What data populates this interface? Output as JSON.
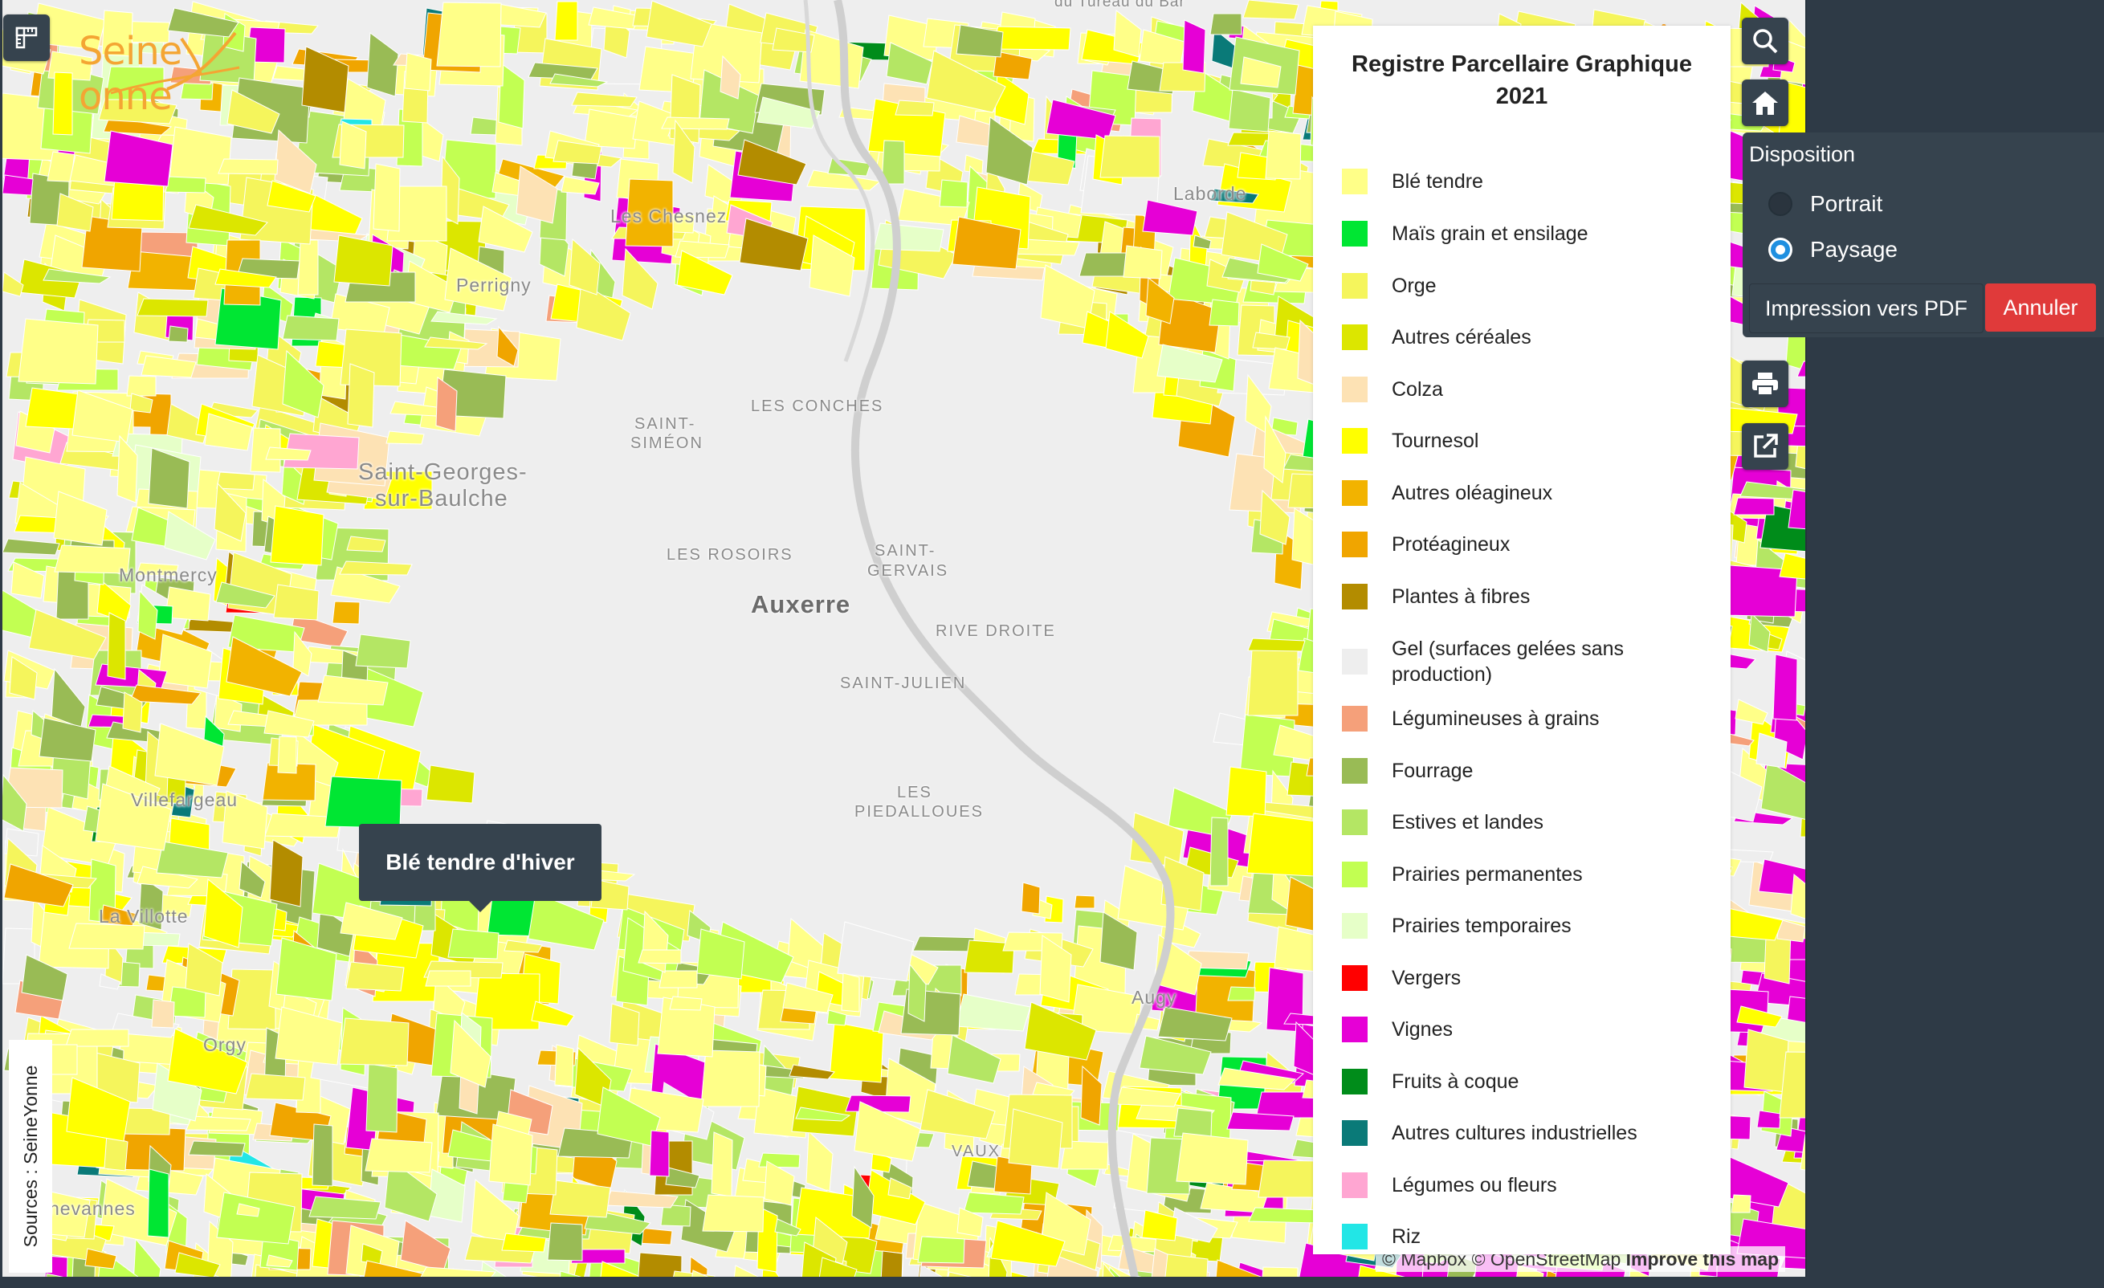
{
  "map": {
    "places": [
      {
        "name": "Auxerre",
        "cls": "city"
      },
      {
        "name": "Perrigny",
        "cls": ""
      },
      {
        "name": "Saint-Georges-",
        "cls": "big"
      },
      {
        "name": "sur-Baulche",
        "cls": "big"
      },
      {
        "name": "Les Chesnez",
        "cls": ""
      },
      {
        "name": "Laborde",
        "cls": ""
      },
      {
        "name": "SAINT-",
        "cls": "small"
      },
      {
        "name": "SIMÉON",
        "cls": "small"
      },
      {
        "name": "LES CONCHES",
        "cls": "small"
      },
      {
        "name": "LES ROSOIRS",
        "cls": "small"
      },
      {
        "name": "SAINT-",
        "cls": "small"
      },
      {
        "name": "GERVAIS",
        "cls": "small"
      },
      {
        "name": "RIVE DROITE",
        "cls": "small"
      },
      {
        "name": "SAINT-JULIEN",
        "cls": "small"
      },
      {
        "name": "LES",
        "cls": "small"
      },
      {
        "name": "PIEDALLOUES",
        "cls": "small"
      },
      {
        "name": "Villefargeau",
        "cls": ""
      },
      {
        "name": "La Villotte",
        "cls": ""
      },
      {
        "name": "Orgy",
        "cls": ""
      },
      {
        "name": "Augy",
        "cls": ""
      },
      {
        "name": "VAUX",
        "cls": "small"
      },
      {
        "name": "Montmercy",
        "cls": ""
      },
      {
        "name": "hevannes",
        "cls": ""
      },
      {
        "name": "du Tureau du Bar",
        "cls": ""
      }
    ],
    "tooltip": "Blé tendre d'hiver",
    "sources": "Sources : SeineYonne",
    "attribution": {
      "mapbox": "© Mapbox",
      "osm": "© OpenStreetMap",
      "improve": "Improve this map"
    }
  },
  "logo": {
    "text_left": "Seine",
    "text_right": "onne",
    "color": "#f4a533"
  },
  "toolbar": {
    "icons": [
      "ruler-icon",
      "search-icon",
      "home-icon",
      "printer-icon",
      "external-link-icon"
    ]
  },
  "legend": {
    "title_line1": "Registre Parcellaire Graphique",
    "title_line2": "2021",
    "items": [
      {
        "label": "Blé tendre",
        "color": "#ffff88"
      },
      {
        "label": "Maïs grain et ensilage",
        "color": "#00e633"
      },
      {
        "label": "Orge",
        "color": "#f5f55c"
      },
      {
        "label": "Autres céréales",
        "color": "#dce600"
      },
      {
        "label": "Colza",
        "color": "#fde2b4"
      },
      {
        "label": "Tournesol",
        "color": "#ffff00"
      },
      {
        "label": "Autres oléagineux",
        "color": "#f2b300"
      },
      {
        "label": "Protéagineux",
        "color": "#f0a500"
      },
      {
        "label": "Plantes à fibres",
        "color": "#b38c00"
      },
      {
        "label": "Gel (surfaces gelées sans production)",
        "color": "#eeeeee"
      },
      {
        "label": "Légumineuses à grains",
        "color": "#f5a07a"
      },
      {
        "label": "Fourrage",
        "color": "#99bb55"
      },
      {
        "label": "Estives et landes",
        "color": "#b4e664"
      },
      {
        "label": "Prairies permanentes",
        "color": "#c2ff52"
      },
      {
        "label": "Prairies temporaires",
        "color": "#e6ffc8"
      },
      {
        "label": "Vergers",
        "color": "#ff0000"
      },
      {
        "label": "Vignes",
        "color": "#e600d6"
      },
      {
        "label": "Fruits à coque",
        "color": "#008c1a"
      },
      {
        "label": "Autres cultures industrielles",
        "color": "#0a7a78"
      },
      {
        "label": "Légumes ou fleurs",
        "color": "#ffa6d2"
      },
      {
        "label": "Riz",
        "color": "#22e6e6"
      }
    ]
  },
  "print": {
    "title": "Disposition",
    "options": [
      {
        "label": "Portrait",
        "checked": false
      },
      {
        "label": "Paysage",
        "checked": true
      }
    ],
    "print_button": "Impression vers PDF",
    "cancel_button": "Annuler",
    "print_color": "#36434e",
    "cancel_color": "#e03a3a"
  }
}
